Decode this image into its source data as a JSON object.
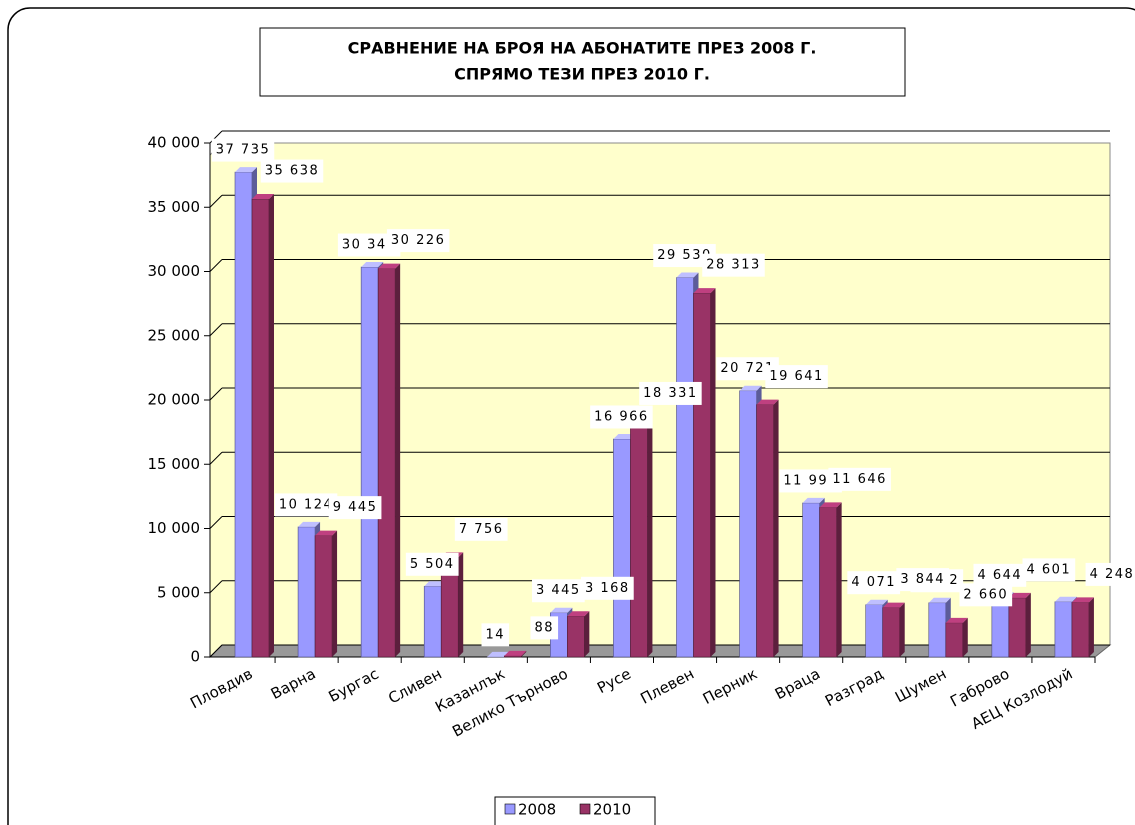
{
  "chart_data": {
    "type": "bar3d",
    "title": [
      "СРАВНЕНИЕ НА БРОЯ НА АБОНАТИТЕ ПРЕЗ 2008 Г.",
      "СПРЯМО ТЕЗИ ПРЕЗ 2010 Г."
    ],
    "categories": [
      "Пловдив",
      "Варна",
      "Бургас",
      "Сливен",
      "Казанлък",
      "Велико Търново",
      "Русе",
      "Плевен",
      "Перник",
      "Враца",
      "Разград",
      "Шумен",
      "Габрово",
      "АЕЦ Козлодуй"
    ],
    "series": [
      {
        "name": "2008",
        "color": "#9999ff",
        "values": [
          37735,
          10124,
          30348,
          5504,
          14,
          3445,
          16966,
          29530,
          20721,
          11990,
          4071,
          4222,
          4644,
          4300
        ],
        "value_labels": [
          "37 735",
          "10 124",
          "30 348",
          "5 504",
          "14",
          "3 445",
          "16 966",
          "29 530",
          "20 721",
          "11 990",
          "4 071",
          "4 222",
          "4 644",
          null
        ]
      },
      {
        "name": "2010",
        "color": "#993366",
        "values": [
          35638,
          9445,
          30226,
          7756,
          88,
          3168,
          18331,
          28313,
          19641,
          11646,
          3844,
          2660,
          4601,
          4248
        ],
        "value_labels": [
          "35 638",
          "9 445",
          "30 226",
          "7 756",
          "88",
          "3 168",
          "18 331",
          "28 313",
          "19 641",
          "11 646",
          "3 844",
          "2 660",
          "4 601",
          "4 248"
        ]
      }
    ],
    "ylim": [
      0,
      40000
    ],
    "yticks": [
      0,
      {
        "value": 5000,
        "label": "5 000"
      },
      {
        "value": 10000,
        "label": "10 000"
      },
      {
        "value": 15000,
        "label": "15 000"
      },
      {
        "value": 20000,
        "label": "20 000"
      },
      {
        "value": 25000,
        "label": "25 000"
      },
      {
        "value": 30000,
        "label": "30 000"
      },
      {
        "value": 35000,
        "label": "35 000"
      },
      {
        "value": 40000,
        "label": "40 000"
      }
    ],
    "grid": true,
    "legend": "bottom"
  }
}
